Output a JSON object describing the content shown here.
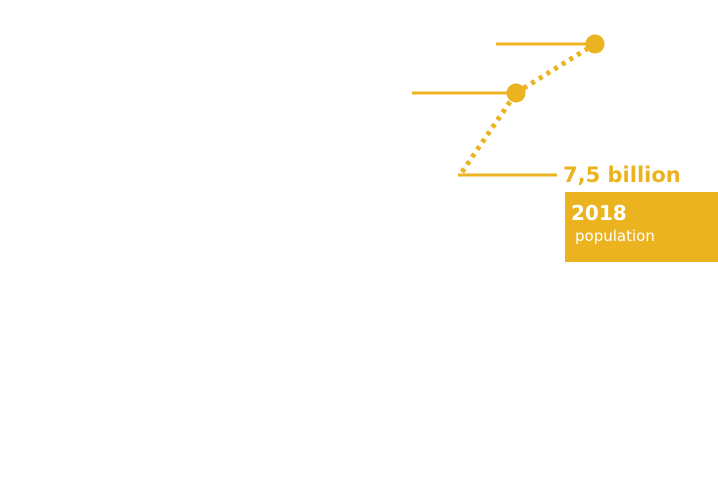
{
  "chart_data": {
    "type": "line",
    "points": [
      {
        "order": 1,
        "line_style": "dotted",
        "marker": false
      },
      {
        "order": 2,
        "line_style": "dotted",
        "marker": true
      },
      {
        "order": 3,
        "line_style": "dotted",
        "marker": true
      }
    ],
    "callouts": [
      {
        "value_label": "7,5 billion",
        "year": "2018",
        "caption": "population"
      }
    ],
    "grid": false,
    "legend": "none"
  },
  "colors": {
    "accent": "#ebb320",
    "text_on_accent": "#ffffff",
    "background": "#ffffff"
  }
}
